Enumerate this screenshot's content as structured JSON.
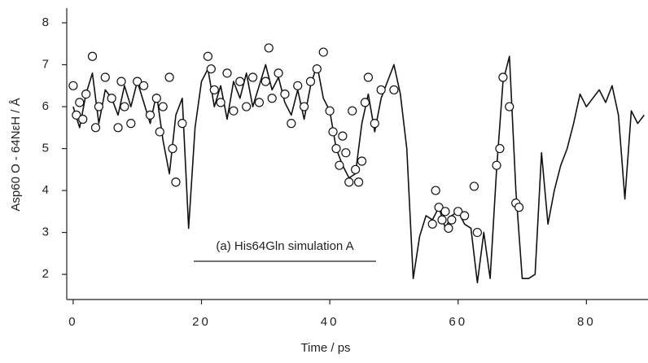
{
  "chart_data": {
    "type": "line",
    "xlabel": "Time / ps",
    "ylabel": "Asp60 O - 64NεH / Å",
    "annotation": "(a) His64Gln simulation A",
    "xlim": [
      -1,
      89.6
    ],
    "ylim": [
      1.4,
      8.35
    ],
    "xticks": [
      0,
      20,
      40,
      60,
      80
    ],
    "yticks": [
      2,
      3,
      4,
      5,
      6,
      7,
      8
    ],
    "x": [
      0,
      1,
      2,
      3,
      4,
      5,
      6,
      7,
      8,
      9,
      10,
      11,
      12,
      13,
      14,
      15,
      16,
      17,
      18,
      19,
      20,
      21,
      22,
      23,
      24,
      25,
      26,
      27,
      28,
      29,
      30,
      31,
      32,
      33,
      34,
      35,
      36,
      37,
      38,
      39,
      40,
      41,
      42,
      43,
      44,
      45,
      46,
      47,
      48,
      49,
      50,
      51,
      52,
      53,
      54,
      55,
      56,
      57,
      58,
      59,
      60,
      61,
      62,
      63,
      64,
      65,
      66,
      67,
      68,
      69,
      70,
      71,
      72,
      73,
      74,
      75,
      76,
      77,
      78,
      79,
      80,
      81,
      82,
      83,
      84,
      85,
      86,
      87,
      88,
      89
    ],
    "series": [
      {
        "color": "#111111",
        "values": [
          6.0,
          5.5,
          6.3,
          6.8,
          5.6,
          6.4,
          6.2,
          5.8,
          6.5,
          6.0,
          6.6,
          6.1,
          5.6,
          6.3,
          5.2,
          4.4,
          5.8,
          6.2,
          3.1,
          5.5,
          6.6,
          6.9,
          6.0,
          6.5,
          5.7,
          6.6,
          6.2,
          6.8,
          6.0,
          6.5,
          7.0,
          6.4,
          6.7,
          6.1,
          5.8,
          6.4,
          5.7,
          6.5,
          7.0,
          6.2,
          5.9,
          5.0,
          4.6,
          4.3,
          4.4,
          5.6,
          6.3,
          5.4,
          6.2,
          6.6,
          7.0,
          6.3,
          5.0,
          1.9,
          2.9,
          3.4,
          3.3,
          3.6,
          3.1,
          3.4,
          3.5,
          3.2,
          3.1,
          1.8,
          3.0,
          1.9,
          4.5,
          6.6,
          7.2,
          4.0,
          1.9,
          1.9,
          2.0,
          4.9,
          3.2,
          4.0,
          4.6,
          5.0,
          5.6,
          6.3,
          6.0,
          6.2,
          6.4,
          6.1,
          6.5,
          5.8,
          3.8,
          5.9,
          5.6,
          5.8
        ]
      }
    ],
    "markers": {
      "color": "#111111",
      "x": [
        0,
        0.5,
        1,
        1.5,
        2,
        3,
        3.5,
        4,
        5,
        6,
        7,
        7.5,
        8,
        9,
        10,
        11,
        12,
        13,
        13.5,
        14,
        15,
        15.5,
        16,
        17,
        21,
        21.5,
        22,
        23,
        24,
        25,
        26,
        27,
        28,
        29,
        30,
        30.5,
        31,
        32,
        33,
        34,
        35,
        36,
        37,
        38,
        39,
        40,
        40.5,
        41,
        41.5,
        42,
        42.5,
        43,
        43.5,
        44,
        44.5,
        45,
        45.5,
        46,
        47,
        48,
        50,
        56,
        56.5,
        57,
        57.5,
        58,
        58.5,
        59,
        60,
        61,
        62.5,
        63,
        66,
        66.5,
        67,
        68,
        69,
        69.5
      ],
      "y": [
        6.5,
        5.8,
        6.1,
        5.7,
        6.3,
        7.2,
        5.5,
        6.0,
        6.7,
        6.2,
        5.5,
        6.6,
        6.0,
        5.6,
        6.6,
        6.5,
        5.8,
        6.2,
        5.4,
        6.0,
        6.7,
        5.0,
        4.2,
        5.6,
        7.2,
        6.9,
        6.4,
        6.1,
        6.8,
        5.9,
        6.6,
        6.0,
        6.7,
        6.1,
        6.6,
        7.4,
        6.2,
        6.8,
        6.3,
        5.6,
        6.5,
        6.0,
        6.6,
        6.9,
        7.3,
        5.9,
        5.4,
        5.0,
        4.6,
        5.3,
        4.9,
        4.2,
        5.9,
        4.5,
        4.2,
        4.7,
        6.1,
        6.7,
        5.6,
        6.4,
        6.4,
        3.2,
        4.0,
        3.6,
        3.3,
        3.5,
        3.1,
        3.3,
        3.5,
        3.4,
        4.1,
        3.0,
        4.6,
        5.0,
        6.7,
        6.0,
        3.7,
        3.6
      ]
    }
  }
}
